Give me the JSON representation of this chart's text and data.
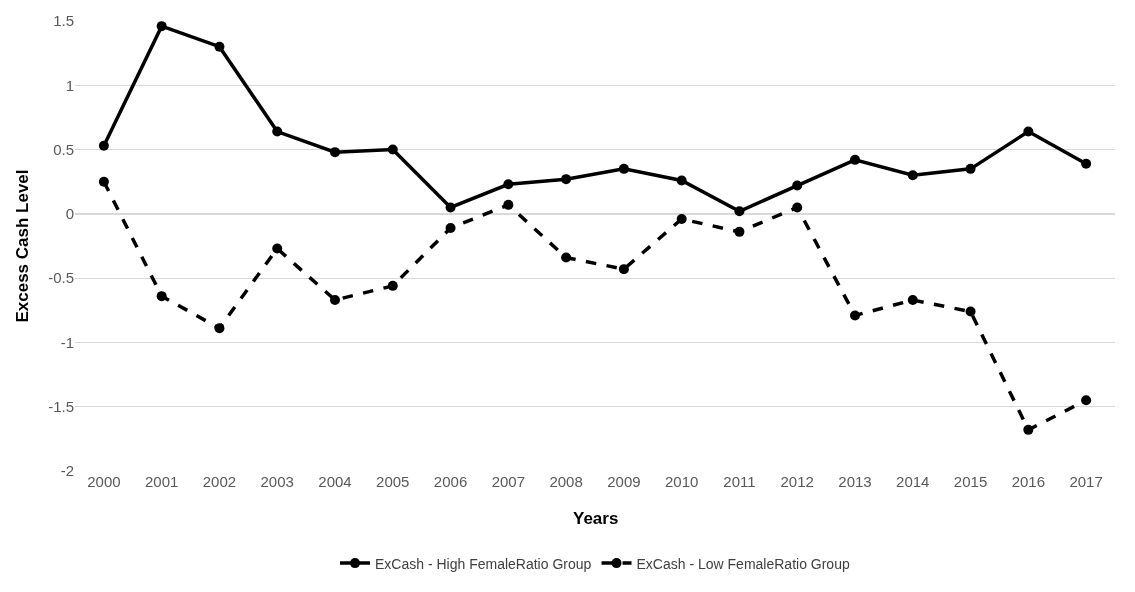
{
  "chart_data": {
    "type": "line",
    "xlabel": "Years",
    "ylabel": "Excess Cash Level",
    "categories": [
      "2000",
      "2001",
      "2002",
      "2003",
      "2004",
      "2005",
      "2006",
      "2007",
      "2008",
      "2009",
      "2010",
      "2011",
      "2012",
      "2013",
      "2014",
      "2015",
      "2016",
      "2017"
    ],
    "series": [
      {
        "name": "ExCash - High FemaleRatio Group",
        "color": "#000000",
        "line_style": "solid",
        "values": [
          0.53,
          1.46,
          1.3,
          0.64,
          0.48,
          0.5,
          0.05,
          0.23,
          0.27,
          0.35,
          0.26,
          0.02,
          0.22,
          0.42,
          0.3,
          0.35,
          0.64,
          0.39
        ]
      },
      {
        "name": "ExCash - Low FemaleRatio Group",
        "color": "#000000",
        "line_style": "dashed",
        "values": [
          0.25,
          -0.64,
          -0.89,
          -0.27,
          -0.67,
          -0.56,
          -0.11,
          0.07,
          -0.34,
          -0.43,
          -0.04,
          -0.14,
          0.05,
          -0.79,
          -0.67,
          -0.76,
          -1.68,
          -1.45
        ]
      }
    ],
    "ylim": [
      -2,
      1.5
    ],
    "yticks": [
      -2,
      -1.5,
      -1,
      -0.5,
      0,
      0.5,
      1,
      1.5
    ],
    "grid": "y",
    "legend": "bottom",
    "marker": "circle"
  }
}
